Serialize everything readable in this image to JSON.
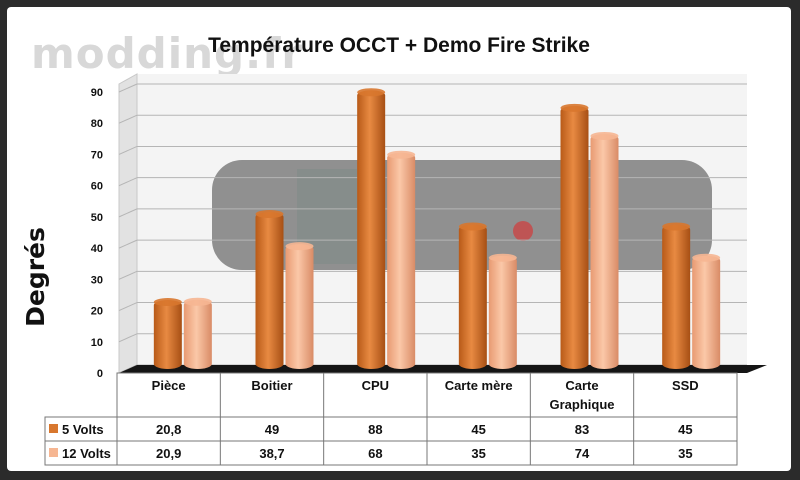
{
  "watermark": "modding.fr",
  "chart_data": {
    "type": "bar",
    "title": "Température OCCT + Demo Fire Strike",
    "xlabel": "",
    "ylabel": "Degrés",
    "ylim": [
      0,
      90
    ],
    "yticks": [
      0,
      10,
      20,
      30,
      40,
      50,
      60,
      70,
      80,
      90
    ],
    "categories": [
      [
        "Pièce"
      ],
      [
        "Boitier"
      ],
      [
        "CPU"
      ],
      [
        "Carte mère"
      ],
      [
        "Carte",
        "Graphique"
      ],
      [
        "SSD"
      ]
    ],
    "series": [
      {
        "name": "5 Volts",
        "values": [
          20.8,
          49,
          88,
          45,
          83,
          45
        ],
        "labels": [
          "20,8",
          "49",
          "88",
          "45",
          "83",
          "45"
        ],
        "color": "#d8772e"
      },
      {
        "name": "12 Volts",
        "values": [
          20.9,
          38.7,
          68,
          35,
          74,
          35
        ],
        "labels": [
          "20,9",
          "38,7",
          "68",
          "35",
          "74",
          "35"
        ],
        "color": "#f6b692"
      }
    ],
    "grid": true,
    "legend": "data-table"
  }
}
